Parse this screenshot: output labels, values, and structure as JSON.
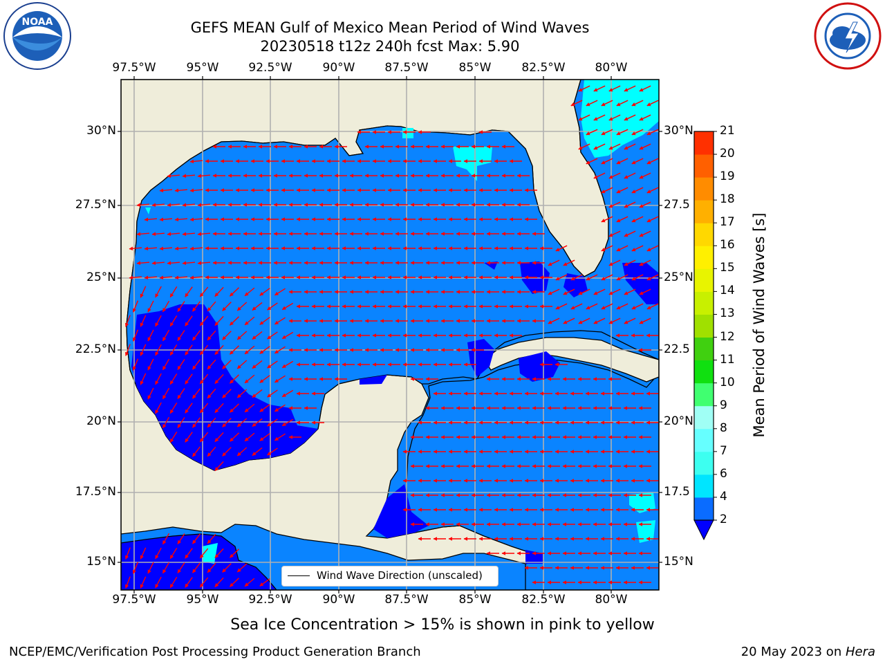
{
  "header": {
    "title_line1": "GEFS MEAN Gulf of Mexico Mean Period of Wind Waves",
    "title_line2": "20230518 t12z 240h fcst   Max: 5.90"
  },
  "logos": {
    "left": "NOAA",
    "left_ring_text": "NATIONAL OCEANIC AND ATMOSPHERIC ADMINISTRATION · U.S. DEPARTMENT OF COMMERCE",
    "right_ring_text": "NATIONAL WEATHER SERVICE"
  },
  "axes": {
    "lon_labels": [
      "97.5°W",
      "95°W",
      "92.5°W",
      "90°W",
      "87.5°W",
      "85°W",
      "82.5°W",
      "80°W"
    ],
    "lat_labels_left": [
      "30°N",
      "27.5°N",
      "25°N",
      "22.5°N",
      "20°N",
      "17.5°N",
      "15°N"
    ],
    "lat_labels_right": [
      "30°N",
      "27.5",
      "25°N",
      "22.5",
      "20°N",
      "17.5",
      "15°N"
    ]
  },
  "legend": {
    "label": "Wind Wave Direction (unscaled)"
  },
  "colorbar": {
    "label": "Mean Period of Wind Waves [s]",
    "ticks": [
      "2",
      "4",
      "6",
      "7",
      "8",
      "9",
      "10",
      "11",
      "12",
      "13",
      "14",
      "15",
      "16",
      "17",
      "18",
      "19",
      "20",
      "21"
    ],
    "colors": [
      "#0a6cff",
      "#00e5ff",
      "#3dfff0",
      "#66ffff",
      "#a0fff5",
      "#40ff70",
      "#10e010",
      "#40d010",
      "#a0e000",
      "#c8f000",
      "#e8f400",
      "#fff000",
      "#ffd800",
      "#ffb000",
      "#ff8c00",
      "#ff6000",
      "#ff3000",
      "#ff0000"
    ],
    "extend_color": "#0000ff"
  },
  "colors": {
    "land": "#efedda",
    "ocean_medium": "#0a84ff",
    "ocean_deep": "#0000ff",
    "ocean_cyan": "#00ffff",
    "arrow": "#ff0000",
    "grid": "#b0b0b0"
  },
  "notes": {
    "sea_ice": "Sea Ice Concentration > 15% is shown in pink to yellow"
  },
  "footer": {
    "left": "NCEP/EMC/Verification Post Processing Product Generation Branch",
    "right_prefix": "20 May 2023 on ",
    "right_host": "Hera"
  }
}
